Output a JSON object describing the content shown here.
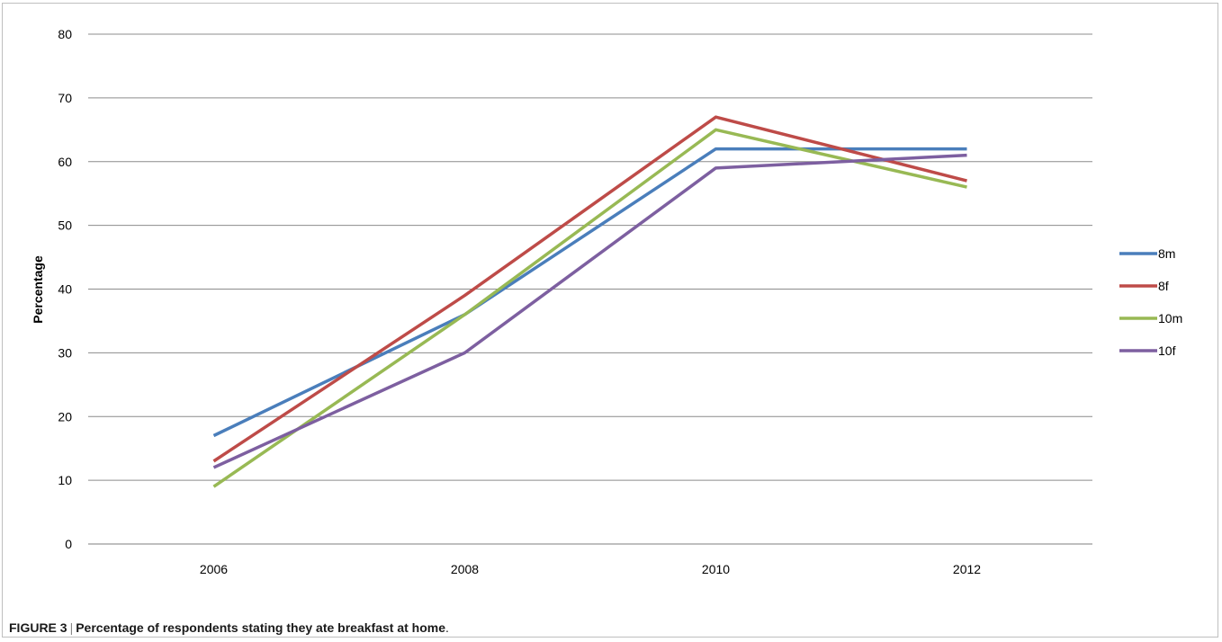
{
  "chart_data": {
    "type": "line",
    "title": "",
    "xlabel": "",
    "ylabel": "Percentage",
    "x": [
      "2006",
      "2008",
      "2010",
      "2012"
    ],
    "ylim": [
      0,
      80
    ],
    "yticks": [
      0,
      10,
      20,
      30,
      40,
      50,
      60,
      70,
      80
    ],
    "grid": true,
    "legend_position": "right",
    "series": [
      {
        "name": "8m",
        "color": "#4a7ebb",
        "values": [
          17,
          36,
          62,
          62
        ]
      },
      {
        "name": "8f",
        "color": "#be4b48",
        "values": [
          13,
          39,
          67,
          57
        ]
      },
      {
        "name": "10m",
        "color": "#98b954",
        "values": [
          9,
          36,
          65,
          56
        ]
      },
      {
        "name": "10f",
        "color": "#7d5fa0",
        "values": [
          12,
          30,
          59,
          61
        ]
      }
    ]
  },
  "caption": {
    "label": "FIGURE 3",
    "separator": "|",
    "text": "Percentage of respondents stating they ate breakfast at home",
    "end": "."
  }
}
